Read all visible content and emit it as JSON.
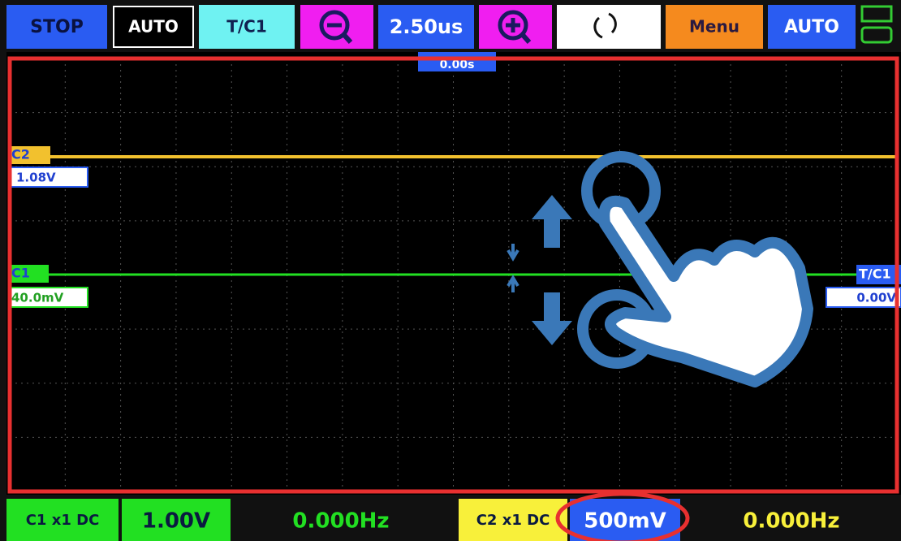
{
  "toolbar": {
    "run_state": "STOP",
    "trigger_mode": "AUTO",
    "trigger_source": "T/C1",
    "timebase": "2.50us",
    "menu": "Menu",
    "auto": "AUTO"
  },
  "screen": {
    "time_offset": "0.00s",
    "c2_marker": {
      "label": "C2",
      "offset": "1.08V"
    },
    "c1_marker": {
      "label": "C1",
      "offset": "40.0mV"
    },
    "trigger_marker": {
      "label": "T/C1",
      "level": "0.00V"
    }
  },
  "status_bar": {
    "c1_setting": "C1 x1 DC",
    "c1_scale": "1.00V",
    "c1_freq": "0.000Hz",
    "c2_setting": "C2 x1 DC",
    "c2_scale": "500mV",
    "c2_freq": "0.000Hz"
  }
}
